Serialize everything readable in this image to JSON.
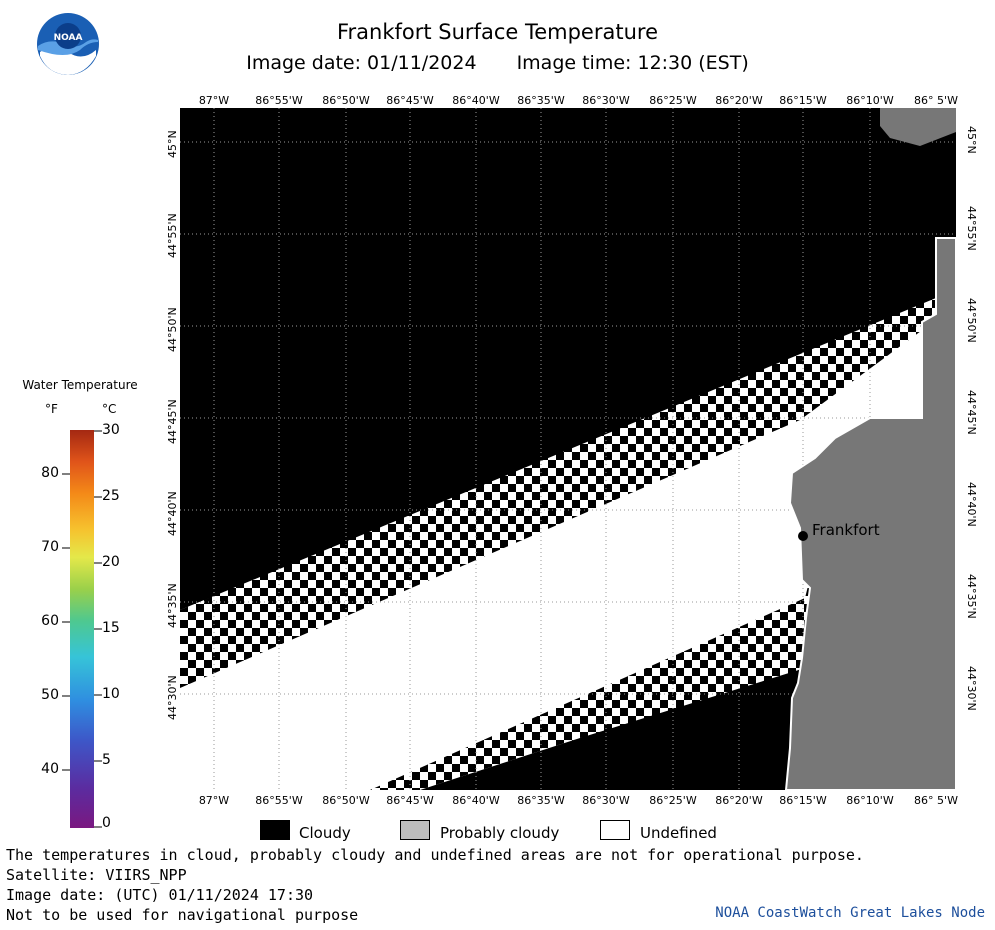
{
  "header": {
    "title": "Frankfort Surface Temperature",
    "image_date": "Image date: 01/11/2024",
    "image_time": "Image time: 12:30 (EST)"
  },
  "map": {
    "lon_labels": [
      "87°W",
      "86°55'W",
      "86°50'W",
      "86°45'W",
      "86°40'W",
      "86°35'W",
      "86°30'W",
      "86°25'W",
      "86°20'W",
      "86°15'W",
      "86°10'W",
      "86° 5'W"
    ],
    "lat_labels": [
      "45°N",
      "44°55'N",
      "44°50'N",
      "44°45'N",
      "44°40'N",
      "44°35'N",
      "44°30'N"
    ],
    "city_label": "Frankfort",
    "colors": {
      "cloudy": "#000000",
      "land": "#777777",
      "undefined": "#ffffff",
      "grid": "#9a9a9a"
    }
  },
  "legend": {
    "title": "Water Temperature",
    "unit_f": "°F",
    "unit_c": "°C",
    "f_ticks": [
      "80",
      "70",
      "60",
      "50",
      "40"
    ],
    "c_ticks": [
      "30",
      "25",
      "20",
      "15",
      "10",
      "5",
      "0"
    ]
  },
  "key": {
    "cloudy": "Cloudy",
    "probably_cloudy": "Probably cloudy",
    "undefined": "Undefined"
  },
  "footer": {
    "note": "The temperatures in cloud, probably cloudy and undefined areas are not for operational purpose.",
    "satellite": "Satellite: VIIRS_NPP",
    "utc_date": "Image date: (UTC) 01/11/2024  17:30",
    "nav_warning": "Not to be used for navigational purpose",
    "credit": "NOAA CoastWatch Great Lakes Node"
  }
}
